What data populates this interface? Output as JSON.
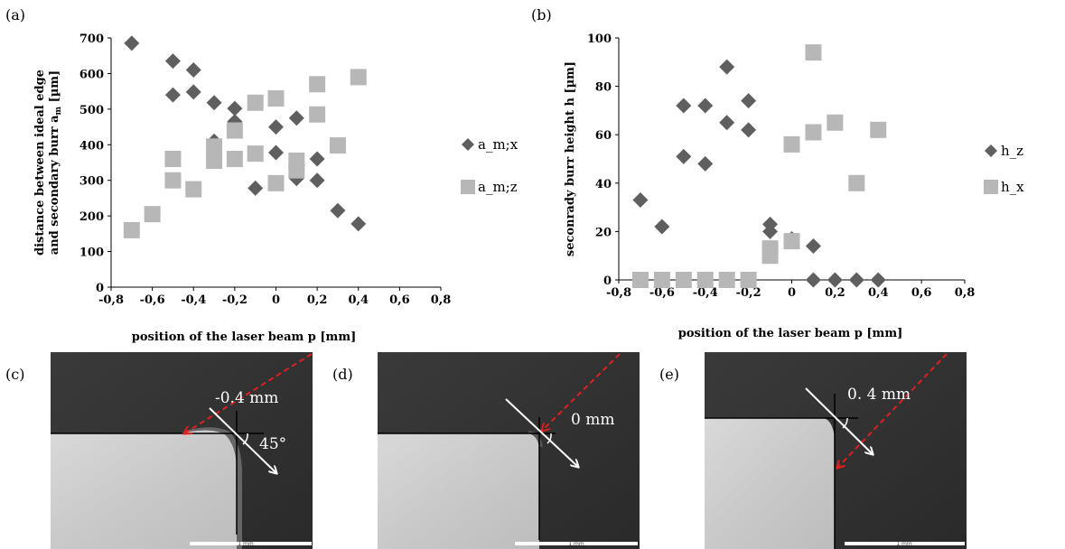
{
  "panels": {
    "a": "(a)",
    "b": "(b)",
    "c": "(c)",
    "d": "(d)",
    "e": "(e)"
  },
  "colors": {
    "series_x": "#5f5f5f",
    "series_z": "#b7b7b7",
    "laser_dashed": "#e02020",
    "arrow": "#ffffff"
  },
  "chart_data": [
    {
      "type": "scatter",
      "xlabel": "position of the laser beam p [mm]",
      "ylabel_line1": "distance between ideal edge",
      "ylabel_line2": "and secondary burr a",
      "ylabel_sub": "m",
      "ylabel_unit": " [µm]",
      "xlim": [
        -0.8,
        0.8
      ],
      "ylim": [
        0,
        700
      ],
      "xticks": [
        "-0,8",
        "-0,6",
        "-0,4",
        "-0,2",
        "0",
        "0,2",
        "0,4",
        "0,6",
        "0,8"
      ],
      "yticks": [
        "0",
        "100",
        "200",
        "300",
        "400",
        "500",
        "600",
        "700"
      ],
      "legend_position": "right",
      "series": [
        {
          "name": "a_m;x",
          "marker": "diamond",
          "points": [
            [
              -0.7,
              685
            ],
            [
              -0.5,
              635
            ],
            [
              -0.5,
              540
            ],
            [
              -0.4,
              610
            ],
            [
              -0.4,
              548
            ],
            [
              -0.3,
              518
            ],
            [
              -0.3,
              410
            ],
            [
              -0.2,
              502
            ],
            [
              -0.2,
              465
            ],
            [
              -0.1,
              278
            ],
            [
              0,
              450
            ],
            [
              0,
              378
            ],
            [
              0.1,
              475
            ],
            [
              0.1,
              305
            ],
            [
              0.2,
              360
            ],
            [
              0.2,
              300
            ],
            [
              0.3,
              215
            ],
            [
              0.4,
              178
            ]
          ]
        },
        {
          "name": "a_m;z",
          "marker": "square",
          "points": [
            [
              -0.7,
              160
            ],
            [
              -0.6,
              205
            ],
            [
              -0.5,
              360
            ],
            [
              -0.5,
              300
            ],
            [
              -0.4,
              275
            ],
            [
              -0.3,
              395
            ],
            [
              -0.3,
              355
            ],
            [
              -0.2,
              440
            ],
            [
              -0.2,
              360
            ],
            [
              -0.1,
              518
            ],
            [
              -0.1,
              375
            ],
            [
              0,
              530
            ],
            [
              0,
              292
            ],
            [
              0.1,
              355
            ],
            [
              0.1,
              328
            ],
            [
              0.2,
              570
            ],
            [
              0.2,
              485
            ],
            [
              0.3,
              398
            ],
            [
              0.4,
              590
            ]
          ]
        }
      ]
    },
    {
      "type": "scatter",
      "xlabel": "position of the laser beam p [mm]",
      "ylabel": "seconrady burr height h [µm]",
      "xlim": [
        -0.8,
        0.8
      ],
      "ylim": [
        0,
        100
      ],
      "xticks": [
        "-0,8",
        "-0,6",
        "-0,4",
        "-0,2",
        "0",
        "0,2",
        "0,4",
        "0,6",
        "0,8"
      ],
      "yticks": [
        "0",
        "20",
        "40",
        "60",
        "80",
        "100"
      ],
      "legend_position": "right",
      "series": [
        {
          "name": "h_z",
          "marker": "diamond",
          "points": [
            [
              -0.7,
              33
            ],
            [
              -0.6,
              22
            ],
            [
              -0.5,
              72
            ],
            [
              -0.5,
              51
            ],
            [
              -0.4,
              72
            ],
            [
              -0.4,
              48
            ],
            [
              -0.3,
              88
            ],
            [
              -0.3,
              65
            ],
            [
              -0.2,
              74
            ],
            [
              -0.2,
              62
            ],
            [
              -0.1,
              23
            ],
            [
              -0.1,
              20
            ],
            [
              0,
              17
            ],
            [
              0.1,
              14
            ],
            [
              0.1,
              0
            ],
            [
              0.2,
              0
            ],
            [
              0.3,
              0
            ],
            [
              0.4,
              0
            ]
          ]
        },
        {
          "name": "h_x",
          "marker": "square",
          "points": [
            [
              -0.7,
              0
            ],
            [
              -0.6,
              0
            ],
            [
              -0.5,
              0
            ],
            [
              -0.4,
              0
            ],
            [
              -0.3,
              0
            ],
            [
              -0.2,
              0
            ],
            [
              -0.1,
              13
            ],
            [
              -0.1,
              10
            ],
            [
              0,
              56
            ],
            [
              0,
              16
            ],
            [
              0.1,
              94
            ],
            [
              0.1,
              61
            ],
            [
              0.2,
              65
            ],
            [
              0.3,
              40
            ],
            [
              0.4,
              62
            ]
          ]
        }
      ]
    }
  ],
  "micrographs": {
    "c_label": "-0.4 mm",
    "c_angle": "45°",
    "d_label": "0 mm",
    "e_label": "0. 4 mm",
    "scale_bar": "1 mm"
  }
}
